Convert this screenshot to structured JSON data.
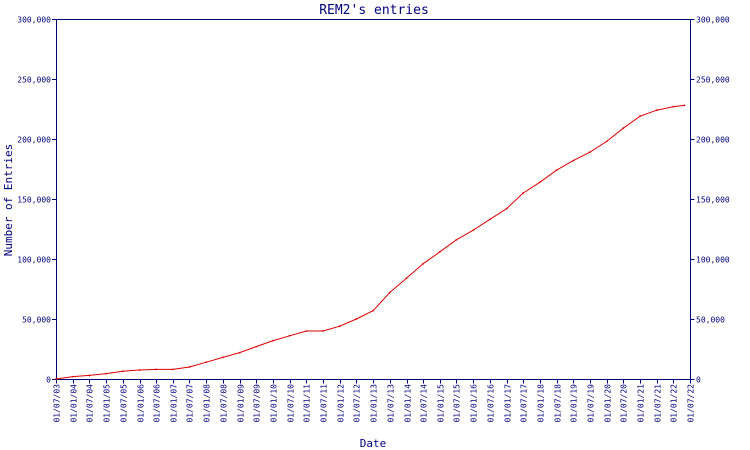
{
  "chart_data": {
    "type": "line",
    "title": "REM2's entries",
    "xlabel": "Date",
    "ylabel": "Number of Entries",
    "ylim": [
      0,
      300000
    ],
    "y_ticks": [
      0,
      50000,
      100000,
      150000,
      200000,
      250000,
      300000
    ],
    "y_tick_labels": [
      "0",
      "50,000",
      "100,000",
      "150,000",
      "200,000",
      "250,000",
      "300,000"
    ],
    "y_axis_right_mirror": true,
    "x_tick_labels": [
      "01/07/03",
      "01/01/04",
      "01/07/04",
      "01/01/05",
      "01/07/05",
      "01/01/06",
      "01/07/06",
      "01/01/07",
      "01/07/07",
      "01/01/08",
      "01/07/08",
      "01/01/09",
      "01/07/09",
      "01/01/10",
      "01/07/10",
      "01/01/11",
      "01/07/11",
      "01/01/12",
      "01/07/12",
      "01/01/13",
      "01/07/13",
      "01/01/14",
      "01/07/14",
      "01/01/15",
      "01/07/15",
      "01/01/16",
      "01/07/16",
      "01/01/17",
      "01/07/17",
      "01/01/18",
      "01/07/18",
      "01/01/19",
      "01/07/19",
      "01/01/20",
      "01/07/20",
      "01/01/21",
      "01/07/21",
      "01/01/22",
      "01/07/22"
    ],
    "grid": false,
    "colors": {
      "axis": "#00007a",
      "line": "#dd0000",
      "background": "#ffffff"
    },
    "series": [
      {
        "x": [
          "2003-07-01",
          "2004-01-01",
          "2004-07-01",
          "2005-01-01",
          "2005-07-01",
          "2006-01-01",
          "2006-07-01",
          "2007-01-01",
          "2007-07-01",
          "2008-01-01",
          "2008-07-01",
          "2009-01-01",
          "2009-07-01",
          "2010-01-01",
          "2010-07-01",
          "2011-01-01",
          "2011-07-01",
          "2012-01-01",
          "2012-07-01",
          "2013-01-01",
          "2013-07-01",
          "2014-01-01",
          "2014-07-01",
          "2015-01-01",
          "2015-07-01",
          "2016-01-01",
          "2016-07-01",
          "2017-01-01",
          "2017-07-01",
          "2018-01-01",
          "2018-07-01",
          "2019-01-01",
          "2019-07-01",
          "2020-01-01",
          "2020-07-01",
          "2021-01-01",
          "2021-07-01",
          "2022-01-01",
          "2022-05-01"
        ],
        "values": [
          0,
          2000,
          3000,
          4500,
          6500,
          7500,
          8000,
          8000,
          10000,
          14000,
          18000,
          22000,
          27000,
          32000,
          36000,
          40000,
          40000,
          44000,
          50000,
          57000,
          72000,
          84000,
          96000,
          106000,
          116000,
          124000,
          133000,
          142000,
          155000,
          164000,
          174000,
          182000,
          189000,
          198000,
          209000,
          219000,
          224000,
          227000,
          228000
        ]
      }
    ]
  }
}
